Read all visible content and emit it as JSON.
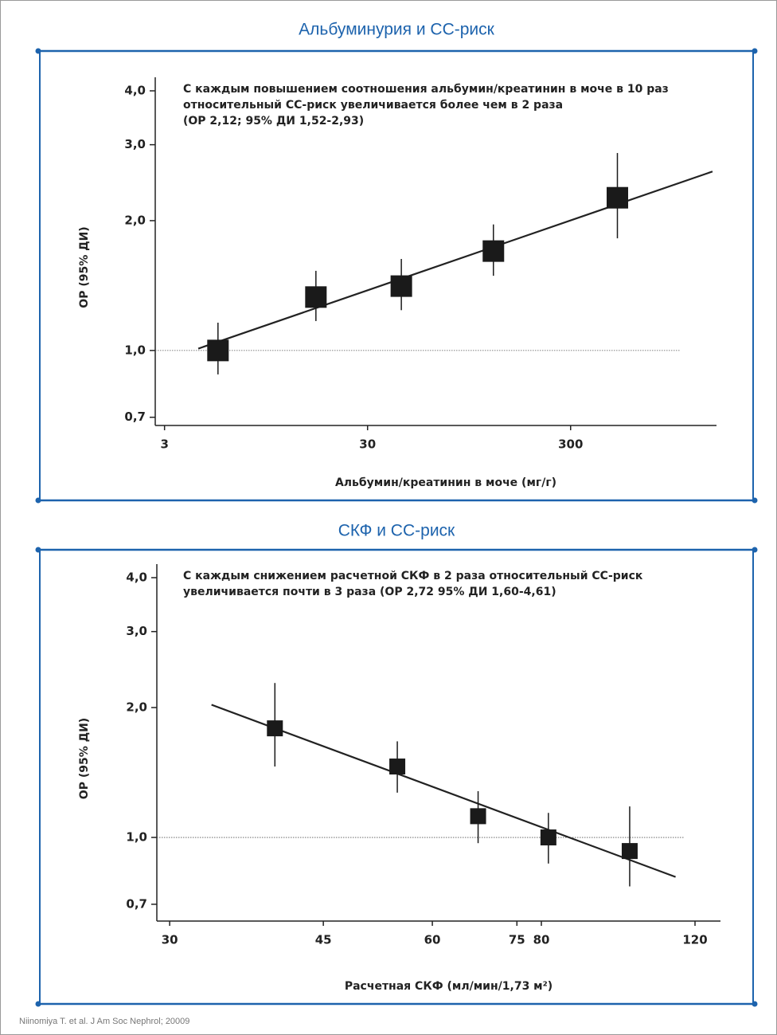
{
  "chart_data": [
    {
      "type": "errorbar",
      "title": "Альбуминурия и  СС-риск",
      "annotation": [
        "С каждым повышением соотношения альбумин/креатинин в моче в 10 раз",
        "относительный СС-риск увеличивается более чем в 2 раза",
        "(ОР 2,12; 95% ДИ 1,52-2,93)"
      ],
      "x_label": "Альбумин/креатинин в моче (мг/г)",
      "y_label": "ОР (95% ДИ)",
      "x": [
        5.5,
        16.7,
        44,
        125,
        510
      ],
      "values": [
        1.0,
        1.33,
        1.41,
        1.7,
        2.26
      ],
      "ci_low": [
        0.88,
        1.17,
        1.24,
        1.49,
        1.82
      ],
      "ci_high": [
        1.16,
        1.53,
        1.63,
        1.96,
        2.87
      ],
      "fit": {
        "x": [
          4.4,
          1500
        ],
        "y": [
          1.01,
          2.6
        ]
      },
      "reference": 1,
      "color": "#1a1a1a",
      "xlog": true,
      "ylog": true,
      "xlim": [
        2.7,
        1500
      ],
      "ylim": [
        0.67,
        4.3
      ],
      "xticks": [
        3,
        30,
        300
      ],
      "yticks": [
        {
          "value": 0.7,
          "label": "0,7"
        },
        {
          "value": 1,
          "label": "1,0"
        },
        {
          "value": 2,
          "label": "2,0"
        },
        {
          "value": 3,
          "label": "3,0"
        },
        {
          "value": 4,
          "label": "4,0"
        }
      ]
    },
    {
      "type": "errorbar",
      "title": "СКФ и СС-риск",
      "annotation": [
        "С каждым снижением расчетной СКФ в 2 раза относительный СС-риск",
        "увеличивается почти в 3 раза (ОР 2,72  95% ДИ 1,60-4,61)"
      ],
      "x_label": "Расчетная СКФ (мл/мин/1,73 м²)",
      "y_label": "ОР (95% ДИ)",
      "x": [
        39.6,
        54.7,
        67.7,
        81.5,
        101
      ],
      "values": [
        1.79,
        1.46,
        1.12,
        1.0,
        0.93
      ],
      "ci_low": [
        1.46,
        1.27,
        0.97,
        0.87,
        0.77
      ],
      "ci_high": [
        2.28,
        1.67,
        1.28,
        1.14,
        1.18
      ],
      "fit": {
        "x": [
          33.5,
          114
        ],
        "y": [
          2.03,
          0.81
        ]
      },
      "reference": 1,
      "color": "#1a1a1a",
      "xlog": true,
      "ylog": true,
      "xlim": [
        29,
        127
      ],
      "ylim": [
        0.64,
        4.3
      ],
      "xticks": [
        30,
        45,
        60,
        75,
        80,
        120
      ],
      "yticks": [
        {
          "value": 0.7,
          "label": "0,7"
        },
        {
          "value": 1,
          "label": "1,0"
        },
        {
          "value": 2,
          "label": "2,0"
        },
        {
          "value": 3,
          "label": "3,0"
        },
        {
          "value": 4,
          "label": "4,0"
        }
      ]
    }
  ],
  "source": "Niinomiya T. et al. J Am Soc Nephrol; 20009"
}
